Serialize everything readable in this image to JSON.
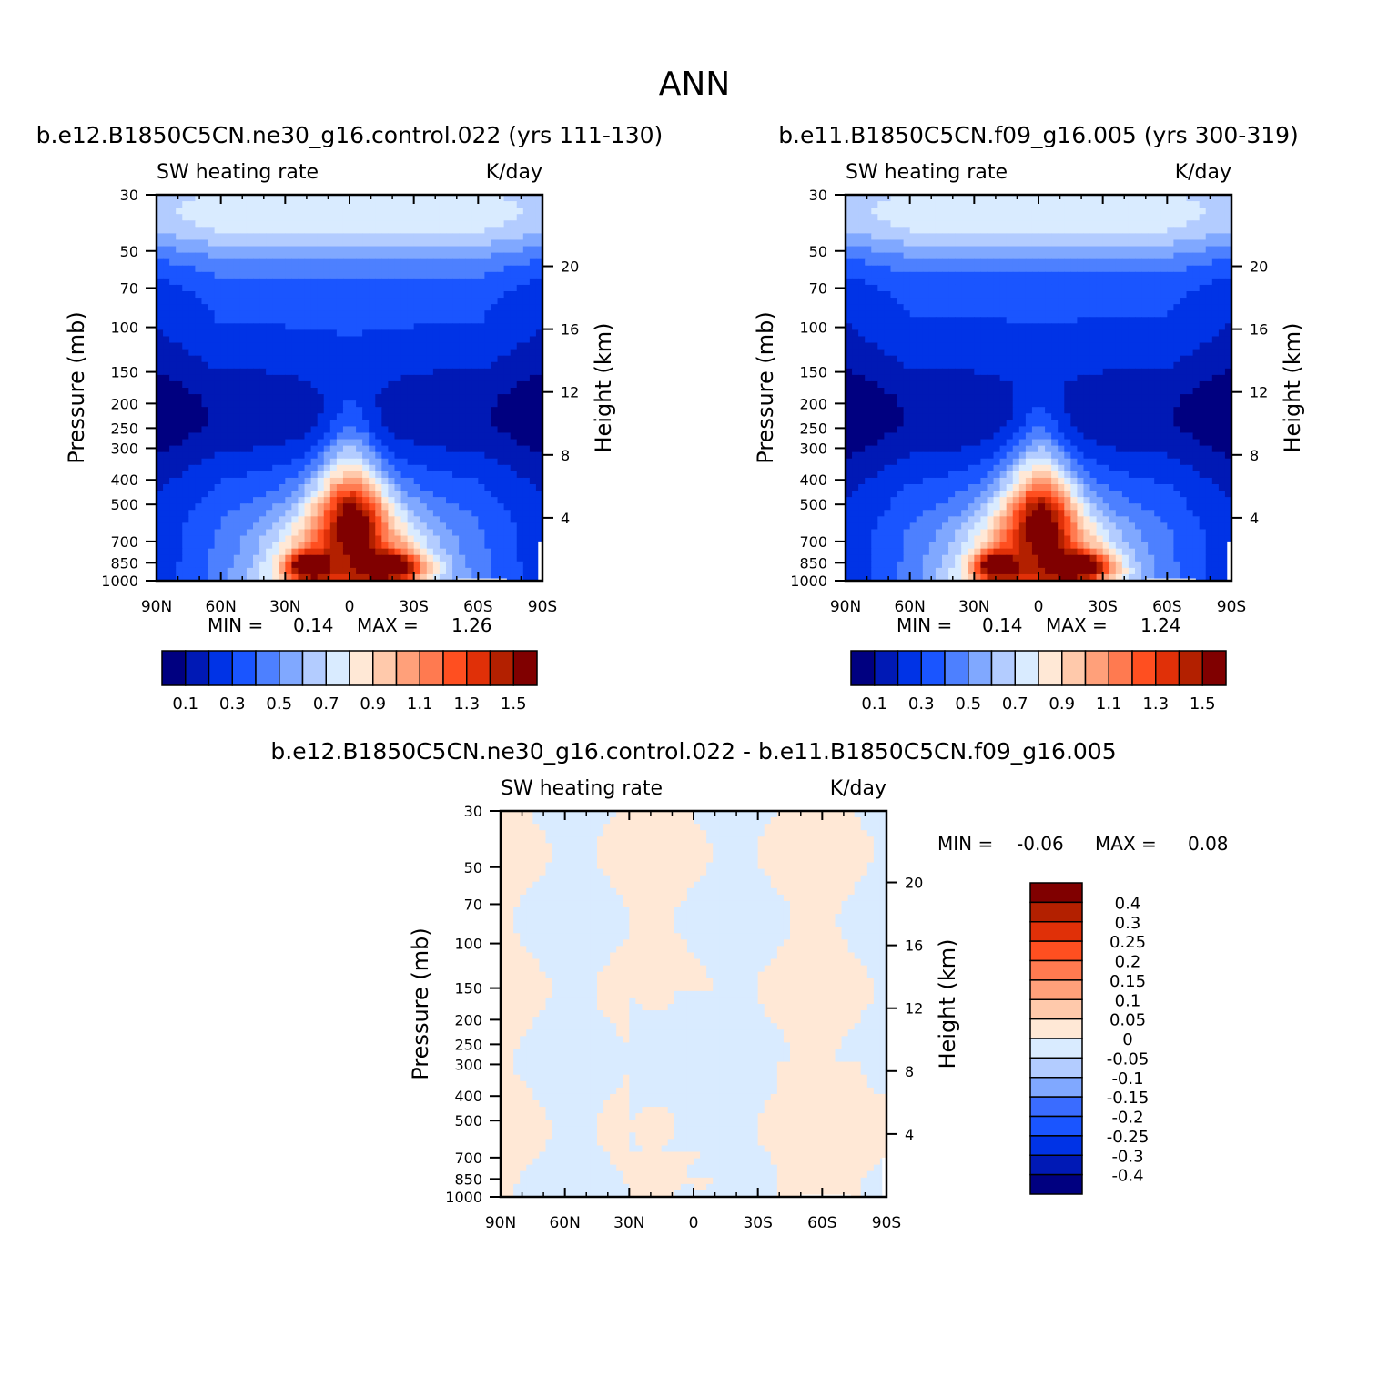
{
  "page_title": "ANN",
  "colors": {
    "ctrl_scale": [
      "#000080",
      "#0019b5",
      "#0033e6",
      "#1a55ff",
      "#4d80ff",
      "#80a8ff",
      "#b3ccff",
      "#d9ebff",
      "#ffe8d6",
      "#ffc9ab",
      "#ffa07a",
      "#ff7a50",
      "#ff4f20",
      "#e03008",
      "#b32000",
      "#800000"
    ],
    "diff_scale": [
      "#000080",
      "#0019b5",
      "#0033e6",
      "#1a55ff",
      "#3a6cff",
      "#80a8ff",
      "#b3ccff",
      "#d9ebff",
      "#ffe8d6",
      "#ffc9ab",
      "#ffa07a",
      "#ff7a50",
      "#ff4f20",
      "#e03008",
      "#b32000",
      "#800000"
    ]
  },
  "chart_data": [
    {
      "type": "heatmap",
      "name": "panel-control",
      "title": "b.e12.B1850C5CN.ne30_g16.control.022 (yrs 111-130)",
      "variable": "SW heating rate",
      "units": "K/day",
      "xlabel": "",
      "ylabel": "Pressure (mb)",
      "y2label": "Height (km)",
      "x_ticks": [
        "90N",
        "60N",
        "30N",
        "0",
        "30S",
        "60S",
        "90S"
      ],
      "y_ticks": [
        "30",
        "50",
        "70",
        "100",
        "150",
        "200",
        "250",
        "300",
        "400",
        "500",
        "700",
        "850",
        "1000"
      ],
      "y_tick_values": [
        30,
        50,
        70,
        100,
        150,
        200,
        250,
        300,
        400,
        500,
        700,
        850,
        1000
      ],
      "y2_ticks": [
        "20",
        "16",
        "12",
        "8",
        "4"
      ],
      "y2_tick_values": [
        20,
        16,
        12,
        8,
        4
      ],
      "min_label": "MIN =",
      "min_value": "0.14",
      "max_label": "MAX =",
      "max_value": "1.26",
      "colorbar_labels": [
        "0.1",
        "0.3",
        "0.5",
        "0.7",
        "0.9",
        "1.1",
        "1.3",
        "1.5"
      ],
      "levels": [
        0.1,
        0.2,
        0.3,
        0.4,
        0.5,
        0.6,
        0.7,
        0.8,
        0.9,
        1.0,
        1.1,
        1.2,
        1.3,
        1.4,
        1.5
      ]
    },
    {
      "type": "heatmap",
      "name": "panel-reference",
      "title": "b.e11.B1850C5CN.f09_g16.005 (yrs 300-319)",
      "variable": "SW heating rate",
      "units": "K/day",
      "xlabel": "",
      "ylabel": "Pressure (mb)",
      "y2label": "Height (km)",
      "x_ticks": [
        "90N",
        "60N",
        "30N",
        "0",
        "30S",
        "60S",
        "90S"
      ],
      "y_ticks": [
        "30",
        "50",
        "70",
        "100",
        "150",
        "200",
        "250",
        "300",
        "400",
        "500",
        "700",
        "850",
        "1000"
      ],
      "y_tick_values": [
        30,
        50,
        70,
        100,
        150,
        200,
        250,
        300,
        400,
        500,
        700,
        850,
        1000
      ],
      "y2_ticks": [
        "20",
        "16",
        "12",
        "8",
        "4"
      ],
      "y2_tick_values": [
        20,
        16,
        12,
        8,
        4
      ],
      "min_label": "MIN =",
      "min_value": "0.14",
      "max_label": "MAX =",
      "max_value": "1.24",
      "colorbar_labels": [
        "0.1",
        "0.3",
        "0.5",
        "0.7",
        "0.9",
        "1.1",
        "1.3",
        "1.5"
      ],
      "levels": [
        0.1,
        0.2,
        0.3,
        0.4,
        0.5,
        0.6,
        0.7,
        0.8,
        0.9,
        1.0,
        1.1,
        1.2,
        1.3,
        1.4,
        1.5
      ]
    },
    {
      "type": "heatmap",
      "name": "panel-difference",
      "title": "b.e12.B1850C5CN.ne30_g16.control.022 - b.e11.B1850C5CN.f09_g16.005",
      "variable": "SW heating rate",
      "units": "K/day",
      "xlabel": "",
      "ylabel": "Pressure (mb)",
      "y2label": "Height (km)",
      "x_ticks": [
        "90N",
        "60N",
        "30N",
        "0",
        "30S",
        "60S",
        "90S"
      ],
      "y_ticks": [
        "30",
        "50",
        "70",
        "100",
        "150",
        "200",
        "250",
        "300",
        "400",
        "500",
        "700",
        "850",
        "1000"
      ],
      "y_tick_values": [
        30,
        50,
        70,
        100,
        150,
        200,
        250,
        300,
        400,
        500,
        700,
        850,
        1000
      ],
      "y2_ticks": [
        "20",
        "16",
        "12",
        "8",
        "4"
      ],
      "y2_tick_values": [
        20,
        16,
        12,
        8,
        4
      ],
      "min_label": "MIN =",
      "min_value": "-0.06",
      "max_label": "MAX =",
      "max_value": "0.08",
      "colorbar_labels": [
        "0.4",
        "0.3",
        "0.25",
        "0.2",
        "0.15",
        "0.1",
        "0.05",
        "0",
        "-0.05",
        "-0.1",
        "-0.15",
        "-0.2",
        "-0.25",
        "-0.3",
        "-0.4"
      ],
      "levels": [
        -0.4,
        -0.3,
        -0.25,
        -0.2,
        -0.15,
        -0.1,
        -0.05,
        0,
        0.05,
        0.1,
        0.15,
        0.2,
        0.25,
        0.3,
        0.4
      ]
    }
  ]
}
